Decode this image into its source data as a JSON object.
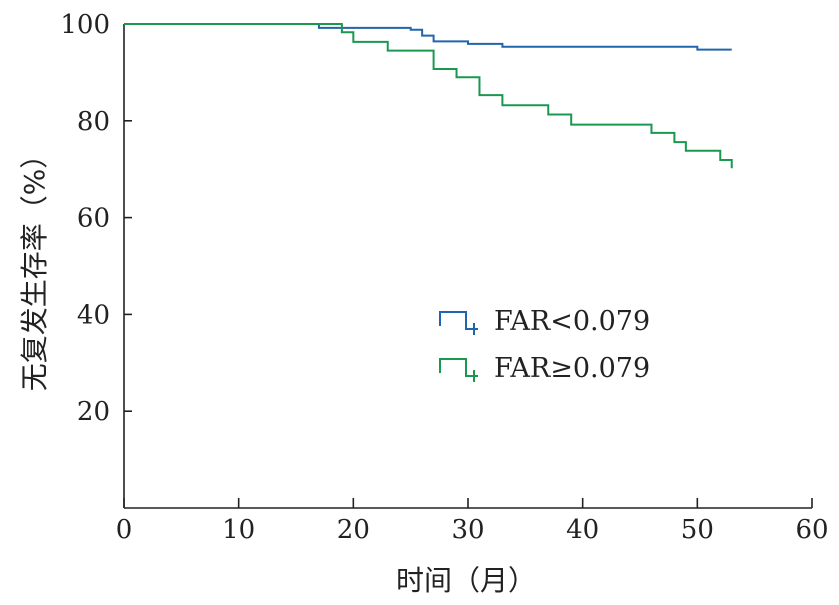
{
  "chart_data": {
    "type": "line",
    "title": "",
    "xlabel": "时间（月）",
    "ylabel": "无复发生存率（%）",
    "xlim": [
      0,
      60
    ],
    "ylim": [
      0,
      100
    ],
    "x_ticks": [
      0,
      10,
      20,
      30,
      40,
      50,
      60
    ],
    "y_ticks": [
      20,
      40,
      60,
      80,
      100
    ],
    "x_tick_labels": [
      "0",
      "10",
      "20",
      "30",
      "40",
      "50",
      "60"
    ],
    "y_tick_labels": [
      "20",
      "40",
      "60",
      "80",
      "100"
    ],
    "grid": false,
    "legend_position": "center-right",
    "step": true,
    "series": [
      {
        "name": "FAR<0.079",
        "color": "#2166ac",
        "x": [
          0,
          17,
          25,
          26,
          27,
          30,
          33,
          50,
          53
        ],
        "y": [
          100,
          99.2,
          98.8,
          97.6,
          96.4,
          95.9,
          95.3,
          94.7,
          94.7
        ]
      },
      {
        "name": "FAR≥0.079",
        "color": "#1a9850",
        "x": [
          0,
          19,
          20,
          23,
          27,
          29,
          31,
          33,
          37,
          39,
          46,
          48,
          49,
          52,
          53,
          53
        ],
        "y": [
          100,
          98.3,
          96.3,
          94.5,
          90.7,
          89.0,
          85.3,
          83.2,
          81.3,
          79.2,
          77.5,
          75.6,
          73.8,
          71.9,
          71.9,
          70.2
        ]
      }
    ]
  }
}
